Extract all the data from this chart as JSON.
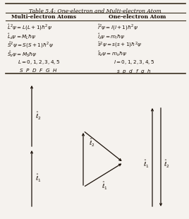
{
  "title": "Table 5.4: One-electron and Multi-electron Atom",
  "col1_header": "Multi-electron Atoms",
  "col2_header": "One-electron Atom",
  "col1_rows": [
    "$\\hat{L}^2\\psi = L(L+1)\\hbar^2\\psi$",
    "$\\hat{L}_z\\psi = M_L\\hbar\\psi$",
    "$\\hat{S}^2\\psi = S(S+1)\\hbar^2\\psi$",
    "$\\hat{S}_z\\psi = M_S\\hbar\\psi$",
    "$L = 0, 1, 2, 3, 4, 5$",
    "$S\\ \\ P\\ \\ D\\ \\ F\\ \\ G\\ \\ H$"
  ],
  "col2_rows": [
    "$\\hat{l}^2\\psi = l(l+1)\\hbar^2\\psi$",
    "$\\hat{l}_z\\psi = m_l\\hbar\\psi$",
    "$\\hat{s}^2\\psi = s(s+1)\\hbar^2\\psi$",
    "$\\hat{s}_z\\psi = m_s\\hbar\\psi$",
    "$l = 0, 1, 2, 3, 4, 5$",
    "$s\\ \\ p\\ \\ d\\ \\ f\\ \\ g\\ \\ h$"
  ],
  "bg_color": "#f5f2ee",
  "text_color": "#1a1008",
  "line_color": "#3a3020"
}
